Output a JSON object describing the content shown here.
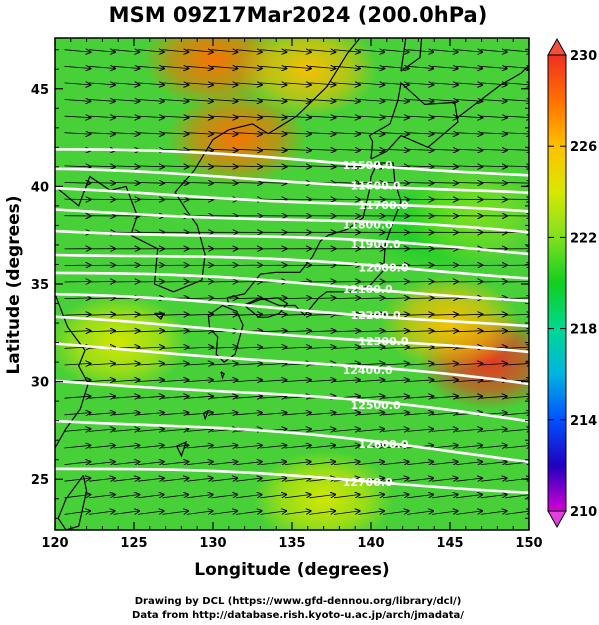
{
  "title": "MSM 09Z17Mar2024 (200.0hPa)",
  "xlabel": "Longitude (degrees)",
  "ylabel": "Latitude  (degrees)",
  "credits": [
    "Drawing by DCL (https://www.gfd-dennou.org/library/dcl/)",
    "Data from http://database.rish.kyoto-u.ac.jp/arch/jmadata/"
  ],
  "chart_data": {
    "type": "heatmap",
    "title": "MSM 09Z17Mar2024 (200.0hPa)",
    "xlabel": "Longitude (degrees)",
    "ylabel": "Latitude  (degrees)",
    "xlim": [
      120,
      150
    ],
    "ylim": [
      22.4,
      47.6
    ],
    "x_ticks": [
      "120",
      "125",
      "130",
      "135",
      "140",
      "145",
      "150"
    ],
    "y_ticks": [
      "25",
      "30",
      "35",
      "40",
      "45"
    ],
    "colorbar": {
      "range": [
        210,
        230
      ],
      "ticks": [
        "210",
        "214",
        "218",
        "222",
        "226",
        "230"
      ],
      "colors": [
        "#d400d4",
        "#2000c0",
        "#0050ff",
        "#00b4e0",
        "#00d890",
        "#10d020",
        "#80e020",
        "#d8e800",
        "#ffc000",
        "#ff7000",
        "#f03020"
      ]
    },
    "temperature_features": [
      {
        "lon": 131.5,
        "lat": 42.5,
        "value": 228
      },
      {
        "lon": 130.0,
        "lat": 46.5,
        "value": 227.5
      },
      {
        "lon": 136.0,
        "lat": 46.0,
        "value": 225
      },
      {
        "lon": 147.5,
        "lat": 31.0,
        "value": 229
      },
      {
        "lon": 145.0,
        "lat": 33.0,
        "value": 226
      },
      {
        "lon": 144.0,
        "lat": 38.0,
        "value": 219
      },
      {
        "lon": 146.5,
        "lat": 38.5,
        "value": 221
      },
      {
        "lon": 124.0,
        "lat": 32.0,
        "value": 223
      },
      {
        "lon": 137.0,
        "lat": 24.0,
        "value": 224
      }
    ],
    "height_contours": [
      {
        "label": "11500.0",
        "lat_west": 41.9,
        "lat_east": 40.6
      },
      {
        "label": "11600.0",
        "lat_west": 40.8,
        "lat_east": 39.6
      },
      {
        "label": "11700.0",
        "lat_west": 39.8,
        "lat_east": 38.6
      },
      {
        "label": "11800.0",
        "lat_west": 38.8,
        "lat_east": 37.6
      },
      {
        "label": "11900.0",
        "lat_west": 37.8,
        "lat_east": 36.6
      },
      {
        "label": "12000.0",
        "lat_west": 36.6,
        "lat_east": 35.4
      },
      {
        "label": "12100.0",
        "lat_west": 35.6,
        "lat_east": 34.2
      },
      {
        "label": "12200.0",
        "lat_west": 34.4,
        "lat_east": 32.8
      },
      {
        "label": "12300.0",
        "lat_west": 33.2,
        "lat_east": 31.4
      },
      {
        "label": "12400.0",
        "lat_west": 31.9,
        "lat_east": 29.8
      },
      {
        "label": "12500.0",
        "lat_west": 30.1,
        "lat_east": 28.0
      },
      {
        "label": "12600.0",
        "lat_west": 28.1,
        "lat_east": 26.0
      },
      {
        "label": "12700.0",
        "lat_west": 25.6,
        "lat_east": 24.4
      }
    ],
    "contour_labels": [
      "11500.0",
      "11600.0",
      "11700.0",
      "11800.0",
      "11900.0",
      "12000.0",
      "12100.0",
      "12200.0",
      "12300.0",
      "12400.0",
      "12500.0",
      "12600.0",
      "12700.0"
    ],
    "wind_field": "westerly, slightly north of east in the north and south of east near 30N",
    "grid": false,
    "legend": "colorbar-right"
  }
}
